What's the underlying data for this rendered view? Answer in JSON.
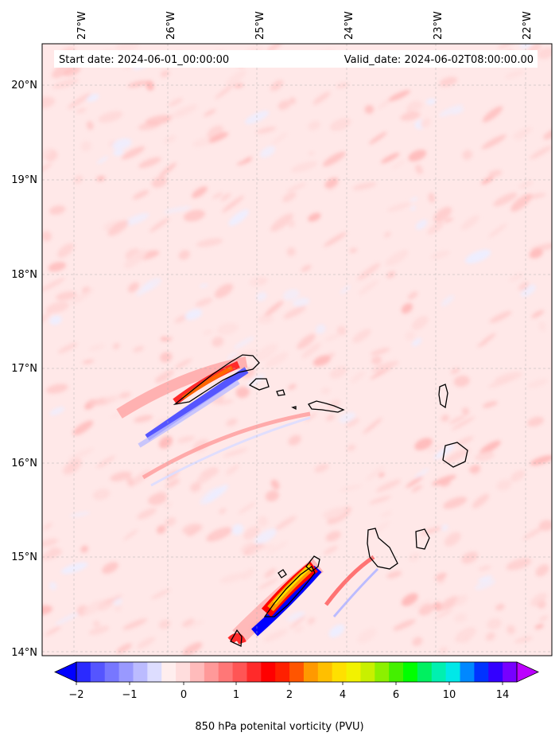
{
  "banner": {
    "start": "Start date: 2024-06-01_00:00:00",
    "valid": "Valid_date: 2024-06-02T08:00:00.00"
  },
  "lon_ticks": [
    "27°W",
    "26°W",
    "25°W",
    "24°W",
    "23°W",
    "22°W"
  ],
  "lat_ticks": [
    "20°N",
    "19°N",
    "18°N",
    "17°N",
    "16°N",
    "15°N",
    "14°N"
  ],
  "colorbar": {
    "label": "850 hPa potenital vorticity (PVU)",
    "ticks": [
      "−2",
      "−1",
      "0",
      "1",
      "2",
      "4",
      "6",
      "10",
      "14"
    ],
    "colors": [
      "#0000ff",
      "#2a2aff",
      "#5555ff",
      "#7777ff",
      "#9999ff",
      "#bbbbff",
      "#ddddff",
      "#ffeeee",
      "#ffdddd",
      "#ffbbbb",
      "#ff9999",
      "#ff7777",
      "#ff5555",
      "#ff2a2a",
      "#ff0000",
      "#ff2000",
      "#ff5500",
      "#ff9900",
      "#ffbf00",
      "#ffe000",
      "#f2f200",
      "#c8f000",
      "#8cf000",
      "#44f000",
      "#00ff00",
      "#00f060",
      "#00f0b0",
      "#00e8e8",
      "#0088ff",
      "#0033ff",
      "#3300ff",
      "#7700ff",
      "#bb00ff"
    ]
  }
}
